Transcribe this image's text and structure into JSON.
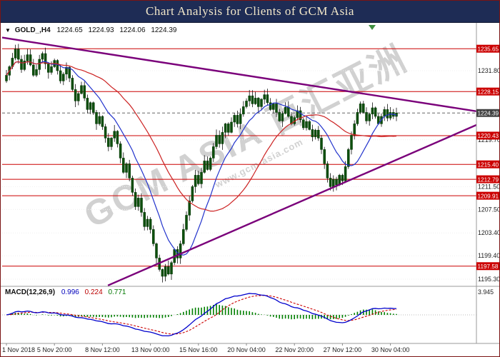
{
  "title": "Chart Analysis for Clients of GCM Asia",
  "symbol_bar": {
    "symbol": "GOLD_,H4",
    "open": "1224.65",
    "high": "1224.93",
    "low": "1224.06",
    "close": "1224.39"
  },
  "watermark": {
    "line1": "GCM ASIA 百汇亚洲",
    "line2": "www.gcm-asia.com"
  },
  "macd_label": {
    "name": "MACD(12,26,9)",
    "macd": "0.996",
    "signal": "0.224",
    "hist": "0.771"
  },
  "colors": {
    "title_bg": "#1e2c55",
    "title_fg": "#f2e7c9",
    "level": "#cc0000",
    "tag_fg": "#ffffff",
    "current_tag_bg": "#424242",
    "bull": "#0d4f0d",
    "bear": "#0d4f0d",
    "wick": "#111111",
    "trend": "#7a007a",
    "ma_fast": "#2233cc",
    "ma_slow": "#cc2222",
    "hist": "#008000",
    "macd_line": "#0000cc",
    "signal_line": "#cc0000",
    "grid": "#f0f0f0",
    "separator": "#9a9a9a",
    "axis_text": "#222222",
    "shift_marker": "#3f8f3f"
  },
  "chart_data": {
    "type": "candlestick",
    "symbol": "GOLD_",
    "timeframe": "H4",
    "last_price": 1224.39,
    "price_range": {
      "top": 1239.8,
      "bottom": 1194.3
    },
    "price_axis_ticks": [
      1231.8,
      1219.7,
      1211.5,
      1207.5,
      1203.4,
      1199.4,
      1195.3
    ],
    "resistance_support_levels": [
      1235.65,
      1228.15,
      1220.43,
      1215.4,
      1212.79,
      1209.91,
      1197.58
    ],
    "x_axis_labels": [
      {
        "bar": 0,
        "label": "1 Nov 2018"
      },
      {
        "bar": 16,
        "label": "5 Nov 20:00"
      },
      {
        "bar": 32,
        "label": "8 Nov 12:00"
      },
      {
        "bar": 48,
        "label": "13 Nov 00:00"
      },
      {
        "bar": 64,
        "label": "15 Nov 16:00"
      },
      {
        "bar": 80,
        "label": "20 Nov 04:00"
      },
      {
        "bar": 96,
        "label": "22 Nov 20:00"
      },
      {
        "bar": 112,
        "label": "27 Nov 12:00"
      },
      {
        "bar": 128,
        "label": "30 Nov 04:00"
      }
    ],
    "closes": [
      1231.0,
      1232.5,
      1234.0,
      1235.6,
      1233.8,
      1232.0,
      1233.5,
      1234.6,
      1232.8,
      1231.0,
      1232.0,
      1233.8,
      1234.8,
      1233.0,
      1231.5,
      1232.5,
      1233.6,
      1231.8,
      1230.0,
      1231.2,
      1232.4,
      1230.5,
      1228.5,
      1226.5,
      1227.8,
      1229.2,
      1227.0,
      1225.0,
      1226.2,
      1224.5,
      1222.5,
      1223.8,
      1222.0,
      1220.0,
      1218.5,
      1220.0,
      1221.2,
      1219.0,
      1216.5,
      1214.0,
      1215.5,
      1213.0,
      1210.5,
      1208.0,
      1209.5,
      1207.0,
      1204.5,
      1205.8,
      1204.0,
      1201.5,
      1199.0,
      1197.0,
      1195.8,
      1197.5,
      1196.2,
      1198.2,
      1200.5,
      1199.0,
      1201.5,
      1204.0,
      1206.5,
      1209.0,
      1211.5,
      1213.5,
      1212.0,
      1214.0,
      1216.0,
      1214.5,
      1216.5,
      1218.5,
      1220.5,
      1219.0,
      1221.0,
      1222.5,
      1221.0,
      1222.8,
      1224.0,
      1222.5,
      1224.2,
      1225.5,
      1226.5,
      1227.4,
      1226.0,
      1227.0,
      1225.5,
      1226.8,
      1227.6,
      1226.2,
      1225.0,
      1226.0,
      1224.5,
      1223.0,
      1224.3,
      1225.4,
      1223.8,
      1222.5,
      1223.6,
      1224.8,
      1223.2,
      1221.8,
      1222.9,
      1221.5,
      1220.2,
      1221.4,
      1220.0,
      1218.0,
      1215.5,
      1213.0,
      1211.5,
      1212.8,
      1211.8,
      1213.5,
      1212.5,
      1215.0,
      1218.0,
      1220.5,
      1222.5,
      1224.5,
      1226.0,
      1224.5,
      1223.0,
      1224.2,
      1225.3,
      1223.8,
      1222.5,
      1223.8,
      1225.0,
      1223.5,
      1224.5,
      1223.8,
      1224.39
    ],
    "moving_averages": [
      {
        "period": 12,
        "color": "#2233cc"
      },
      {
        "period": 32,
        "color": "#cc2222"
      }
    ],
    "trendlines": [
      {
        "f1": 0.0,
        "p1": 1237.6,
        "f2": 1.0,
        "p2": 1224.7,
        "color": "#7a007a"
      },
      {
        "f1": 0.223,
        "p1": 1194.2,
        "f2": 1.0,
        "p2": 1222.3,
        "color": "#7a007a"
      }
    ],
    "macd": {
      "label": "MACD(12,26,9)",
      "fast": 12,
      "slow": 26,
      "signal": 9,
      "macd_value": 0.996,
      "signal_value": 0.224,
      "histogram_value": 0.771,
      "axis_tick": "3.945",
      "scale_max": 3.945
    }
  }
}
